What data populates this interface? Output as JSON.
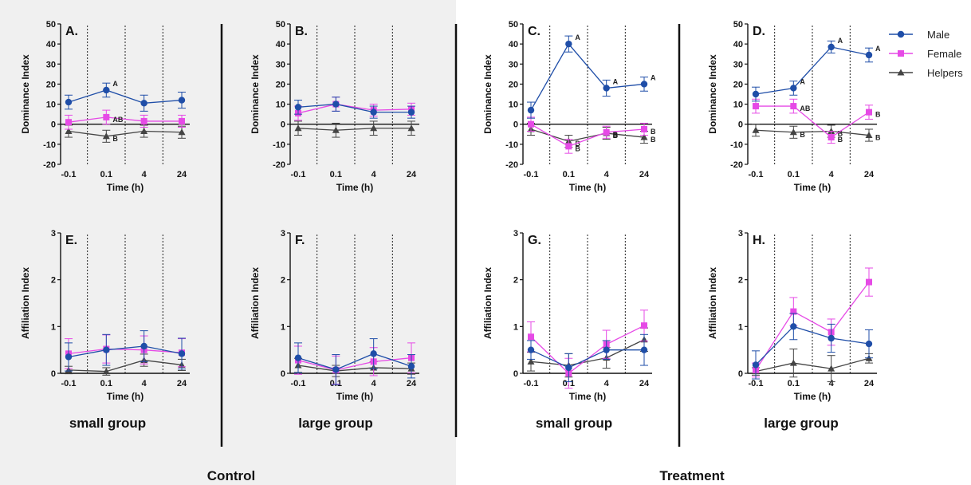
{
  "colors": {
    "male": "#1f4ea8",
    "female": "#e64ae6",
    "helpers": "#444444",
    "control_bg": "#f0f0f0"
  },
  "legend": [
    {
      "label": "Male",
      "series": "male",
      "marker": "circle"
    },
    {
      "label": "Female",
      "series": "female",
      "marker": "square"
    },
    {
      "label": "Helpers",
      "series": "helpers",
      "marker": "triangle"
    }
  ],
  "groups": [
    {
      "label": "Control"
    },
    {
      "label": "Treatment"
    }
  ],
  "columns": [
    {
      "label": "small group"
    },
    {
      "label": "large group"
    },
    {
      "label": "small group"
    },
    {
      "label": "large group"
    }
  ],
  "chart_data": [
    {
      "panel": "A.",
      "type": "line",
      "ylabel": "Dominance Index",
      "xlabel": "Time (h)",
      "categories": [
        "-0.1",
        "0.1",
        "4",
        "24"
      ],
      "ylim": [
        -20,
        50
      ],
      "yticks": [
        -20,
        -10,
        0,
        10,
        20,
        30,
        40,
        50
      ],
      "series": [
        {
          "name": "Male",
          "values": [
            11,
            17,
            10.5,
            12
          ],
          "err": [
            3.5,
            3.5,
            4,
            4
          ],
          "labels": [
            "",
            "A",
            "",
            ""
          ]
        },
        {
          "name": "Female",
          "values": [
            1,
            3.5,
            1.5,
            1.5
          ],
          "err": [
            3.5,
            3.5,
            3,
            3
          ],
          "labels": [
            "",
            "AB",
            "",
            ""
          ]
        },
        {
          "name": "Helpers",
          "values": [
            -3.5,
            -6,
            -3.5,
            -4
          ],
          "err": [
            3,
            3,
            3,
            3
          ],
          "labels": [
            "",
            "B",
            "",
            ""
          ]
        }
      ]
    },
    {
      "panel": "B.",
      "type": "line",
      "ylabel": "Dominance Index",
      "xlabel": "Time (h)",
      "categories": [
        "-0.1",
        "0.1",
        "4",
        "24"
      ],
      "ylim": [
        -20,
        50
      ],
      "yticks": [
        -20,
        -10,
        0,
        10,
        20,
        30,
        40,
        50
      ],
      "series": [
        {
          "name": "Male",
          "values": [
            8.5,
            10,
            6,
            6
          ],
          "err": [
            3.5,
            3.5,
            3,
            3
          ],
          "labels": [
            "",
            "",
            "",
            ""
          ]
        },
        {
          "name": "Female",
          "values": [
            5.5,
            10,
            7,
            7.5
          ],
          "err": [
            3.5,
            3.5,
            3,
            3
          ],
          "labels": [
            "",
            "",
            "",
            ""
          ]
        },
        {
          "name": "Helpers",
          "values": [
            -2,
            -3,
            -2,
            -2
          ],
          "err": [
            3.5,
            3.5,
            3.5,
            3.5
          ],
          "labels": [
            "",
            "",
            "",
            ""
          ]
        }
      ]
    },
    {
      "panel": "C.",
      "type": "line",
      "ylabel": "Dominance Index",
      "xlabel": "Time (h)",
      "categories": [
        "-0.1",
        "0.1",
        "4",
        "24"
      ],
      "ylim": [
        -20,
        50
      ],
      "yticks": [
        -20,
        -10,
        0,
        10,
        20,
        30,
        40,
        50
      ],
      "series": [
        {
          "name": "Male",
          "values": [
            7,
            40,
            18,
            20
          ],
          "err": [
            4,
            4,
            4,
            3.5
          ],
          "labels": [
            "",
            "A",
            "A",
            "A"
          ]
        },
        {
          "name": "Female",
          "values": [
            0,
            -11,
            -4,
            -2.5
          ],
          "err": [
            3.5,
            3.5,
            3,
            3
          ],
          "labels": [
            "",
            "B",
            "B",
            "B"
          ]
        },
        {
          "name": "Helpers",
          "values": [
            -2.5,
            -8.5,
            -4.5,
            -6.5
          ],
          "err": [
            3,
            3,
            3,
            3
          ],
          "labels": [
            "",
            "B",
            "B",
            "B"
          ]
        }
      ]
    },
    {
      "panel": "D.",
      "type": "line",
      "ylabel": "Dominance Index",
      "xlabel": "Time (h)",
      "categories": [
        "-0.1",
        "0.1",
        "4",
        "24"
      ],
      "ylim": [
        -20,
        50
      ],
      "yticks": [
        -20,
        -10,
        0,
        10,
        20,
        30,
        40,
        50
      ],
      "series": [
        {
          "name": "Male",
          "values": [
            15,
            18,
            38.5,
            34.5
          ],
          "err": [
            3.5,
            3.5,
            3,
            3.5
          ],
          "labels": [
            "",
            "A",
            "A",
            "A"
          ]
        },
        {
          "name": "Female",
          "values": [
            9,
            9,
            -6.5,
            6
          ],
          "err": [
            3.5,
            3.5,
            3,
            3.5
          ],
          "labels": [
            "",
            "AB",
            "B",
            "B"
          ]
        },
        {
          "name": "Helpers",
          "values": [
            -3,
            -4,
            -3.5,
            -5.5
          ],
          "err": [
            3,
            3,
            3,
            3
          ],
          "labels": [
            "",
            "B",
            "B",
            "B"
          ]
        }
      ]
    },
    {
      "panel": "E.",
      "type": "line",
      "ylabel": "Affiliation Index",
      "xlabel": "Time (h)",
      "categories": [
        "-0.1",
        "0.1",
        "4",
        "24"
      ],
      "ylim": [
        0,
        3
      ],
      "yticks": [
        0,
        1,
        2,
        3
      ],
      "series": [
        {
          "name": "Male",
          "values": [
            0.35,
            0.5,
            0.58,
            0.42
          ],
          "err": [
            0.3,
            0.33,
            0.33,
            0.33
          ],
          "labels": [
            "",
            "",
            "",
            ""
          ]
        },
        {
          "name": "Female",
          "values": [
            0.42,
            0.52,
            0.5,
            0.44
          ],
          "err": [
            0.32,
            0.3,
            0.3,
            0.3
          ],
          "labels": [
            "",
            "",
            "",
            ""
          ]
        },
        {
          "name": "Helpers",
          "values": [
            0.07,
            0.04,
            0.28,
            0.18
          ],
          "err": [
            0.08,
            0.08,
            0.13,
            0.12
          ],
          "labels": [
            "",
            "",
            "",
            ""
          ]
        }
      ]
    },
    {
      "panel": "F.",
      "type": "line",
      "ylabel": "Affiliation Index",
      "xlabel": "Time (h)",
      "categories": [
        "-0.1",
        "0.1",
        "4",
        "24"
      ],
      "ylim": [
        0,
        3
      ],
      "yticks": [
        0,
        1,
        2,
        3
      ],
      "series": [
        {
          "name": "Male",
          "values": [
            0.33,
            0.08,
            0.42,
            0.15
          ],
          "err": [
            0.32,
            0.32,
            0.32,
            0.25
          ],
          "labels": [
            "",
            "",
            "",
            ""
          ]
        },
        {
          "name": "Female",
          "values": [
            0.28,
            0.07,
            0.25,
            0.33
          ],
          "err": [
            0.3,
            0.3,
            0.3,
            0.32
          ],
          "labels": [
            "",
            "",
            "",
            ""
          ]
        },
        {
          "name": "Helpers",
          "values": [
            0.17,
            0.05,
            0.12,
            0.1
          ],
          "err": [
            0.15,
            0.12,
            0.13,
            0.12
          ],
          "labels": [
            "",
            "",
            "",
            ""
          ]
        }
      ]
    },
    {
      "panel": "G.",
      "type": "line",
      "ylabel": "Affiliation Index",
      "xlabel": "Time (h)",
      "categories": [
        "-0.1",
        "0.1",
        "4",
        "24"
      ],
      "ylim": [
        0,
        3
      ],
      "yticks": [
        0,
        1,
        2,
        3
      ],
      "series": [
        {
          "name": "Male",
          "values": [
            0.5,
            0.12,
            0.5,
            0.5
          ],
          "err": [
            0.2,
            0.3,
            0.2,
            0.33
          ],
          "labels": [
            "",
            "",
            "",
            ""
          ]
        },
        {
          "name": "Female",
          "values": [
            0.78,
            0.0,
            0.62,
            1.02
          ],
          "err": [
            0.32,
            0.32,
            0.3,
            0.33
          ],
          "labels": [
            "",
            "",
            "",
            ""
          ]
        },
        {
          "name": "Helpers",
          "values": [
            0.25,
            0.17,
            0.33,
            0.72
          ],
          "err": [
            0.2,
            0.25,
            0.22,
            0.25
          ],
          "labels": [
            "",
            "",
            "",
            ""
          ]
        }
      ]
    },
    {
      "panel": "H.",
      "type": "line",
      "ylabel": "Affiliation Index",
      "xlabel": "Time (h)",
      "categories": [
        "-0.1",
        "0.1",
        "4",
        "24"
      ],
      "ylim": [
        0,
        3
      ],
      "yticks": [
        0,
        1,
        2,
        3
      ],
      "series": [
        {
          "name": "Male",
          "values": [
            0.18,
            1.0,
            0.75,
            0.63
          ],
          "err": [
            0.3,
            0.28,
            0.3,
            0.3
          ],
          "labels": [
            "",
            "",
            "",
            ""
          ]
        },
        {
          "name": "Female",
          "values": [
            0.07,
            1.32,
            0.88,
            1.95
          ],
          "err": [
            0.15,
            0.3,
            0.28,
            0.3
          ],
          "labels": [
            "",
            "",
            "",
            ""
          ]
        },
        {
          "name": "Helpers",
          "values": [
            0.04,
            0.22,
            0.1,
            0.32
          ],
          "err": [
            0.08,
            0.3,
            0.28,
            0.1
          ],
          "labels": [
            "",
            "",
            "",
            ""
          ]
        }
      ]
    }
  ]
}
